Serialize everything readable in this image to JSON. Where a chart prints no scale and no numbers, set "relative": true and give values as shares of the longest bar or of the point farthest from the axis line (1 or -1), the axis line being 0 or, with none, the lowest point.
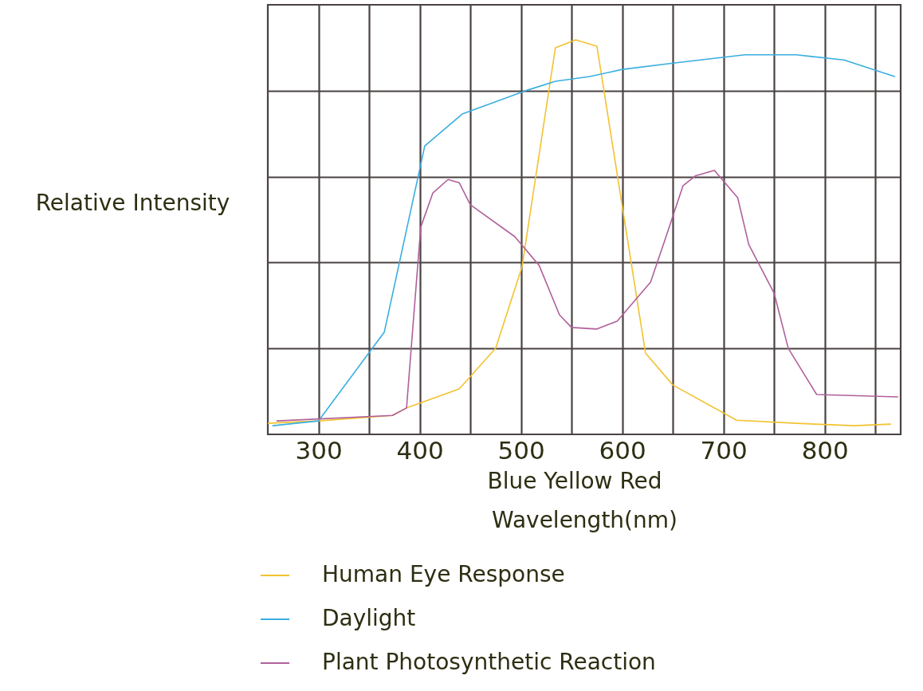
{
  "chart_data": {
    "type": "line",
    "ylabel": "Relative Intensity",
    "xlabel": "Wavelength(nm)",
    "annotations": [
      "Blue  Yellow  Red"
    ],
    "relative": true,
    "xlim": [
      250,
      875
    ],
    "xticks": [
      300,
      {
        "value": 350,
        "label": null
      },
      400,
      {
        "value": 450,
        "label": null
      },
      500,
      {
        "value": 550,
        "label": null
      },
      600,
      {
        "value": 650,
        "label": null
      },
      700,
      {
        "value": 750,
        "label": null
      },
      800,
      {
        "value": 850,
        "label": null
      }
    ],
    "grid": true,
    "legend": "bottom",
    "line_style": "solid",
    "series": [
      {
        "name": "Human Eye Response",
        "color": "#f2c230",
        "x": [
          250,
          300,
          373,
          387,
          439,
          475,
          501,
          534,
          554,
          575,
          623,
          650,
          713,
          772,
          829,
          865
        ],
        "values": [
          0.028,
          0.034,
          0.048,
          0.067,
          0.115,
          0.218,
          0.424,
          0.98,
          1.0,
          0.984,
          0.206,
          0.125,
          0.036,
          0.028,
          0.022,
          0.026
        ]
      },
      {
        "name": "Daylight",
        "color": "#3aaee0",
        "x": [
          255,
          300,
          365,
          405,
          442,
          507,
          534,
          568,
          600,
          650,
          721,
          772,
          819,
          869
        ],
        "values": [
          0.022,
          0.034,
          0.259,
          0.731,
          0.812,
          0.873,
          0.895,
          0.907,
          0.925,
          0.941,
          0.962,
          0.962,
          0.949,
          0.907
        ]
      },
      {
        "name": "Plant Photosynthetic Reaction",
        "color": "#b0609a",
        "x": [
          259,
          373,
          387,
          401,
          413,
          428,
          439,
          450,
          494,
          518,
          538,
          550,
          575,
          595,
          628,
          643,
          660,
          672,
          691,
          714,
          725,
          750,
          764,
          792,
          872
        ],
        "values": [
          0.034,
          0.048,
          0.067,
          0.525,
          0.612,
          0.646,
          0.638,
          0.582,
          0.501,
          0.428,
          0.303,
          0.271,
          0.267,
          0.287,
          0.386,
          0.499,
          0.63,
          0.655,
          0.669,
          0.6,
          0.481,
          0.358,
          0.218,
          0.101,
          0.095
        ]
      }
    ]
  }
}
